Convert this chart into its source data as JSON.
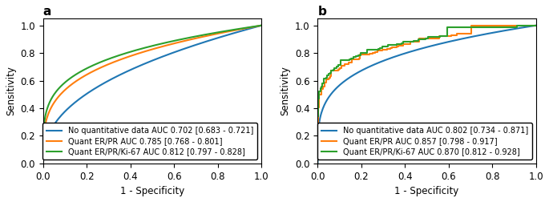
{
  "panel_a": {
    "title": "a",
    "curves": [
      {
        "label": "No quantitative data AUC 0.702 [0.683 - 0.721]",
        "color": "#1f77b4",
        "auc": 0.702,
        "style": "smooth",
        "seed": 1
      },
      {
        "label": "Quant ER/PR AUC 0.785 [0.768 - 0.801]",
        "color": "#ff7f0e",
        "auc": 0.785,
        "style": "smooth",
        "seed": 2
      },
      {
        "label": "Quant ER/PR/Ki-67 AUC 0.812 [0.797 - 0.828]",
        "color": "#2ca02c",
        "auc": 0.812,
        "style": "smooth",
        "seed": 3
      }
    ],
    "xlabel": "1 - Specificity",
    "ylabel": "Sensitivity",
    "xlim": [
      0.0,
      1.0
    ],
    "ylim": [
      0.0,
      1.05
    ],
    "yticks": [
      0.0,
      0.2,
      0.4,
      0.6,
      0.8,
      1.0
    ],
    "xticks": [
      0.0,
      0.2,
      0.4,
      0.6,
      0.8,
      1.0
    ]
  },
  "panel_b": {
    "title": "b",
    "curves": [
      {
        "label": "No quantitative data AUC 0.802 [0.734 - 0.871]",
        "color": "#1f77b4",
        "auc": 0.802,
        "style": "smooth",
        "seed": 10
      },
      {
        "label": "Quant ER/PR AUC 0.857 [0.798 - 0.917]",
        "color": "#ff7f0e",
        "auc": 0.857,
        "style": "step",
        "seed": 20
      },
      {
        "label": "Quant ER/PR/Ki-67 AUC 0.870 [0.812 - 0.928]",
        "color": "#2ca02c",
        "auc": 0.87,
        "style": "step",
        "seed": 30
      }
    ],
    "xlabel": "1 - Specificity",
    "ylabel": "Sensitivity",
    "xlim": [
      0.0,
      1.0
    ],
    "ylim": [
      0.0,
      1.05
    ],
    "yticks": [
      0.0,
      0.2,
      0.4,
      0.6,
      0.8,
      1.0
    ],
    "xticks": [
      0.0,
      0.2,
      0.4,
      0.6,
      0.8,
      1.0
    ]
  },
  "legend_loc": "lower right",
  "legend_fontsize": 7.0,
  "title_fontsize": 11,
  "axis_fontsize": 8.5,
  "linewidth": 1.5
}
